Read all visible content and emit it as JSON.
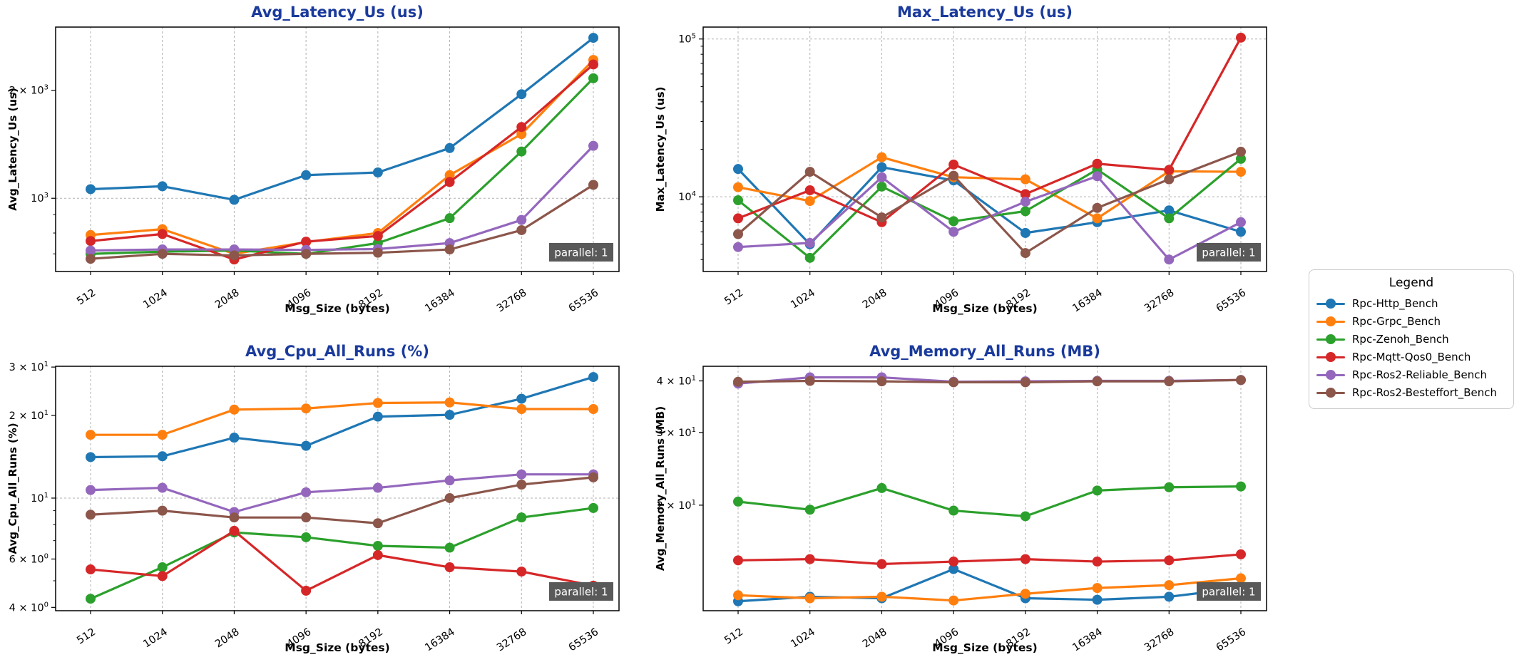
{
  "page": {
    "background": "#ffffff",
    "title_color": "#1a3a9c",
    "grid_color": "#b0b0b0",
    "spine_color": "#000000",
    "badge": {
      "label": "parallel: 1",
      "bg": "#595959",
      "fg": "#ffffff"
    }
  },
  "legend": {
    "title": "Legend",
    "position": "right-middle",
    "items": [
      {
        "label": "Rpc-Http_Bench",
        "color": "#1f77b4"
      },
      {
        "label": "Rpc-Grpc_Bench",
        "color": "#ff7f0e"
      },
      {
        "label": "Rpc-Zenoh_Bench",
        "color": "#2ca02c"
      },
      {
        "label": "Rpc-Mqtt-Qos0_Bench",
        "color": "#d62728"
      },
      {
        "label": "Rpc-Ros2-Reliable_Bench",
        "color": "#9467bd"
      },
      {
        "label": "Rpc-Ros2-Besteffort_Bench",
        "color": "#8c564b"
      }
    ]
  },
  "chart_data": [
    {
      "id": "avg-latency",
      "type": "line",
      "position": "top-left",
      "title": "Avg_Latency_Us  (us)",
      "ylabel": "Avg_Latency_Us (us)",
      "xlabel": "Msg_Size (bytes)",
      "yscale": "log",
      "ylim": [
        625,
        3000
      ],
      "categories": [
        "512",
        "1024",
        "2048",
        "4096",
        "8192",
        "16384",
        "32768",
        "65536"
      ],
      "yticks": [
        {
          "v": 2000,
          "coef": "2 × ",
          "exp": "3",
          "grid": false
        },
        {
          "v": 1000,
          "coef": "",
          "exp": "3",
          "grid": true
        }
      ],
      "yminor": [
        700,
        800,
        900
      ],
      "badge": "parallel: 1",
      "series": [
        {
          "name": "Rpc-Http_Bench",
          "color": "#1f77b4",
          "values": [
            1060,
            1080,
            990,
            1160,
            1180,
            1380,
            1950,
            2800
          ]
        },
        {
          "name": "Rpc-Grpc_Bench",
          "color": "#ff7f0e",
          "values": [
            790,
            820,
            700,
            755,
            800,
            1160,
            1510,
            2430
          ]
        },
        {
          "name": "Rpc-Zenoh_Bench",
          "color": "#2ca02c",
          "values": [
            700,
            710,
            715,
            700,
            750,
            880,
            1350,
            2160
          ]
        },
        {
          "name": "Rpc-Mqtt-Qos0_Bench",
          "color": "#d62728",
          "values": [
            760,
            795,
            675,
            757,
            785,
            1110,
            1580,
            2360
          ]
        },
        {
          "name": "Rpc-Ros2-Reliable_Bench",
          "color": "#9467bd",
          "values": [
            715,
            720,
            720,
            718,
            722,
            750,
            870,
            1400
          ]
        },
        {
          "name": "Rpc-Ros2-Besteffort_Bench",
          "color": "#8c564b",
          "values": [
            678,
            700,
            693,
            700,
            705,
            720,
            815,
            1090
          ]
        }
      ]
    },
    {
      "id": "max-latency",
      "type": "line",
      "position": "top-right",
      "title": "Max_Latency_Us  (us)",
      "ylabel": "Max_Latency_Us (us)",
      "xlabel": "Msg_Size (bytes)",
      "yscale": "log",
      "ylim": [
        3360,
        119000
      ],
      "categories": [
        "512",
        "1024",
        "2048",
        "4096",
        "8192",
        "16384",
        "32768",
        "65536"
      ],
      "yticks": [
        {
          "v": 100000,
          "coef": "",
          "exp": "5",
          "grid": true
        },
        {
          "v": 10000,
          "coef": "",
          "exp": "4",
          "grid": true
        }
      ],
      "yminor": [
        4000,
        5000,
        6000,
        7000,
        8000,
        9000,
        20000,
        30000,
        40000,
        50000,
        60000,
        70000,
        80000,
        90000
      ],
      "badge": "parallel: 1",
      "series": [
        {
          "name": "Rpc-Http_Bench",
          "color": "#1f77b4",
          "values": [
            15000,
            5000,
            15400,
            12700,
            5900,
            6900,
            8200,
            6000
          ]
        },
        {
          "name": "Rpc-Grpc_Bench",
          "color": "#ff7f0e",
          "values": [
            11500,
            9400,
            17800,
            13300,
            12900,
            7300,
            14500,
            14400
          ]
        },
        {
          "name": "Rpc-Zenoh_Bench",
          "color": "#2ca02c",
          "values": [
            9500,
            4100,
            11600,
            7000,
            8100,
            14900,
            7300,
            17400
          ]
        },
        {
          "name": "Rpc-Mqtt-Qos0_Bench",
          "color": "#d62728",
          "values": [
            7300,
            11000,
            6900,
            16000,
            10400,
            16200,
            14800,
            102000
          ]
        },
        {
          "name": "Rpc-Ros2-Reliable_Bench",
          "color": "#9467bd",
          "values": [
            4800,
            5100,
            13300,
            6000,
            9300,
            13500,
            4000,
            6900
          ]
        },
        {
          "name": "Rpc-Ros2-Besteffort_Bench",
          "color": "#8c564b",
          "values": [
            5800,
            14400,
            7400,
            13600,
            4400,
            8500,
            12900,
            19300
          ]
        }
      ]
    },
    {
      "id": "avg-cpu",
      "type": "line",
      "position": "bottom-left",
      "title": "Avg_Cpu_All_Runs  (%)",
      "ylabel": "Avg_Cpu_All_Runs (%)",
      "xlabel": "Msg_Size (bytes)",
      "yscale": "log",
      "ylim": [
        3.89,
        30.2
      ],
      "categories": [
        "512",
        "1024",
        "2048",
        "4096",
        "8192",
        "16384",
        "32768",
        "65536"
      ],
      "yticks": [
        {
          "v": 30,
          "coef": "3 × ",
          "exp": "1",
          "grid": false
        },
        {
          "v": 20,
          "coef": "2 × ",
          "exp": "1",
          "grid": false
        },
        {
          "v": 10,
          "coef": "",
          "exp": "1",
          "grid": true
        },
        {
          "v": 6,
          "coef": "6 × ",
          "exp": "0",
          "grid": false
        },
        {
          "v": 4,
          "coef": "4 × ",
          "exp": "0",
          "grid": false
        }
      ],
      "yminor": [
        5,
        7,
        8,
        9
      ],
      "badge": "parallel: 1",
      "series": [
        {
          "name": "Rpc-Http_Bench",
          "color": "#1f77b4",
          "values": [
            14.1,
            14.2,
            16.6,
            15.5,
            19.8,
            20.1,
            23.0,
            27.6
          ]
        },
        {
          "name": "Rpc-Grpc_Bench",
          "color": "#ff7f0e",
          "values": [
            17.0,
            17.0,
            21.0,
            21.2,
            22.2,
            22.3,
            21.1,
            21.1
          ]
        },
        {
          "name": "Rpc-Zenoh_Bench",
          "color": "#2ca02c",
          "values": [
            4.3,
            5.6,
            7.5,
            7.2,
            6.7,
            6.6,
            8.5,
            9.2
          ]
        },
        {
          "name": "Rpc-Mqtt-Qos0_Bench",
          "color": "#d62728",
          "values": [
            5.5,
            5.2,
            7.6,
            4.6,
            6.2,
            5.6,
            5.4,
            4.8
          ]
        },
        {
          "name": "Rpc-Ros2-Reliable_Bench",
          "color": "#9467bd",
          "values": [
            10.7,
            10.9,
            8.9,
            10.5,
            10.9,
            11.6,
            12.2,
            12.2
          ]
        },
        {
          "name": "Rpc-Ros2-Besteffort_Bench",
          "color": "#8c564b",
          "values": [
            8.7,
            9.0,
            8.5,
            8.5,
            8.1,
            10.0,
            11.2,
            11.9
          ]
        }
      ]
    },
    {
      "id": "avg-memory",
      "type": "line",
      "position": "bottom-right",
      "title": "Avg_Memory_All_Runs  (MB)",
      "ylabel": "Avg_Memory_All_Runs (MB)",
      "xlabel": "Msg_Size (bytes)",
      "yscale": "log",
      "ylim": [
        11.1,
        43.4
      ],
      "categories": [
        "512",
        "1024",
        "2048",
        "4096",
        "8192",
        "16384",
        "32768",
        "65536"
      ],
      "yticks": [
        {
          "v": 40,
          "coef": "4 × ",
          "exp": "1",
          "grid": false
        },
        {
          "v": 30,
          "coef": "3 × ",
          "exp": "1",
          "grid": false
        },
        {
          "v": 20,
          "coef": "2 × ",
          "exp": "1",
          "grid": false
        }
      ],
      "yminor": [],
      "badge": "parallel: 1",
      "series": [
        {
          "name": "Rpc-Http_Bench",
          "color": "#1f77b4",
          "values": [
            11.7,
            12.0,
            11.9,
            14.0,
            11.9,
            11.8,
            12.0,
            12.6
          ]
        },
        {
          "name": "Rpc-Grpc_Bench",
          "color": "#ff7f0e",
          "values": [
            12.1,
            11.9,
            12.0,
            11.75,
            12.2,
            12.6,
            12.8,
            13.3
          ]
        },
        {
          "name": "Rpc-Zenoh_Bench",
          "color": "#2ca02c",
          "values": [
            20.4,
            19.5,
            22.0,
            19.4,
            18.8,
            21.7,
            22.1,
            22.2
          ]
        },
        {
          "name": "Rpc-Mqtt-Qos0_Bench",
          "color": "#d62728",
          "values": [
            14.7,
            14.8,
            14.4,
            14.6,
            14.8,
            14.6,
            14.7,
            15.2
          ]
        },
        {
          "name": "Rpc-Ros2-Reliable_Bench",
          "color": "#9467bd",
          "values": [
            39.4,
            40.8,
            40.8,
            39.8,
            39.9,
            40.0,
            40.0,
            40.2
          ]
        },
        {
          "name": "Rpc-Ros2-Besteffort_Bench",
          "color": "#8c564b",
          "values": [
            39.8,
            40.0,
            39.9,
            39.7,
            39.7,
            39.9,
            39.9,
            40.2
          ]
        }
      ]
    }
  ]
}
